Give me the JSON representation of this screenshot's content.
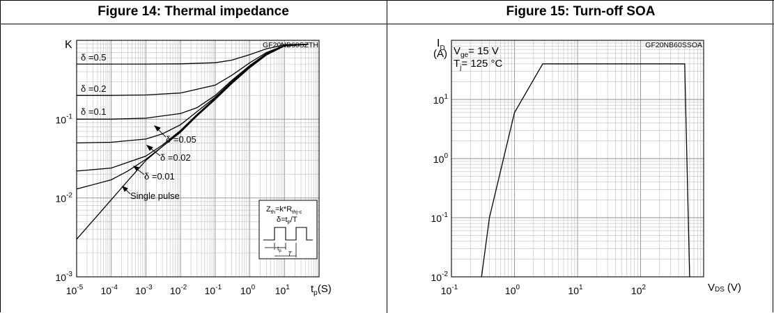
{
  "figure14": {
    "title": "Figure 14: Thermal impedance",
    "code": "GF20NB60SZTH",
    "y_axis_label": "K",
    "x_axis_label": "t",
    "x_axis_sub": "p",
    "x_axis_unit": "(S)",
    "curve_labels": [
      "δ =0.5",
      "δ =0.2",
      "δ =0.1",
      "δ =0.05",
      "δ =0.02",
      "δ =0.01",
      "Single pulse"
    ],
    "legend": {
      "formula_main": "Z",
      "formula_sub": "th",
      "formula_mid": "=k*R",
      "formula_sub2": "thj-c",
      "duty_main": "δ=t",
      "duty_sub": "p",
      "duty_end": "/T",
      "pulse_tp": "t",
      "pulse_tp_sub": "p",
      "pulse_T": "T"
    }
  },
  "figure15": {
    "title": "Figure 15: Turn-off SOA",
    "code": "GF20NB60SSOA",
    "y_axis_label": "I",
    "y_axis_sub": "D",
    "y_axis_unit": "(A)",
    "x_axis_label": "V",
    "x_axis_sub": "DS",
    "x_axis_unit": "(V)",
    "cond_vge_main": "V",
    "cond_vge_sub": "ge",
    "cond_vge_val": "= 15 V",
    "cond_tj_main": "T",
    "cond_tj_sub": "j",
    "cond_tj_val": "= 125 °C"
  },
  "chart_data": [
    {
      "type": "line",
      "title": "Figure 14: Thermal impedance",
      "xlabel": "tp(S)",
      "ylabel": "K",
      "xscale": "log",
      "yscale": "log",
      "xlim": [
        1e-05,
        100
      ],
      "ylim": [
        0.001,
        1
      ],
      "x_ticks": [
        1e-05,
        0.0001,
        0.001,
        0.01,
        0.1,
        1,
        10
      ],
      "x_tick_labels": [
        [
          "10",
          "-5"
        ],
        [
          "10",
          "-4"
        ],
        [
          "10",
          "-3"
        ],
        [
          "10",
          "-2"
        ],
        [
          "10",
          "-1"
        ],
        [
          "10",
          "0"
        ],
        [
          "10",
          "1"
        ]
      ],
      "y_ticks": [
        0.001,
        0.01,
        0.1
      ],
      "y_tick_labels": [
        [
          "10",
          "-3"
        ],
        [
          "10",
          "-2"
        ],
        [
          "10",
          "-1"
        ]
      ],
      "grid": true,
      "series": [
        {
          "name": "δ =0.5",
          "x": [
            1e-05,
            0.001,
            0.01,
            0.1,
            0.3,
            1,
            3,
            10,
            50
          ],
          "y": [
            0.5,
            0.5,
            0.503,
            0.52,
            0.56,
            0.66,
            0.78,
            0.88,
            0.89
          ]
        },
        {
          "name": "δ =0.2",
          "x": [
            1e-05,
            0.0001,
            0.001,
            0.01,
            0.1,
            0.3,
            1,
            3,
            10,
            50
          ],
          "y": [
            0.2,
            0.2,
            0.203,
            0.215,
            0.27,
            0.36,
            0.52,
            0.7,
            0.86,
            0.89
          ]
        },
        {
          "name": "δ =0.1",
          "x": [
            1e-05,
            0.0001,
            0.001,
            0.01,
            0.03,
            0.1,
            0.3,
            1,
            3,
            10,
            50
          ],
          "y": [
            0.1,
            0.1,
            0.103,
            0.118,
            0.14,
            0.2,
            0.31,
            0.48,
            0.68,
            0.85,
            0.89
          ]
        },
        {
          "name": "δ =0.05",
          "x": [
            1e-05,
            0.0001,
            0.001,
            0.003,
            0.01,
            0.03,
            0.1,
            0.3,
            1,
            3,
            10,
            50
          ],
          "y": [
            0.05,
            0.051,
            0.056,
            0.065,
            0.085,
            0.125,
            0.19,
            0.3,
            0.47,
            0.67,
            0.85,
            0.89
          ]
        },
        {
          "name": "δ =0.02",
          "x": [
            1e-05,
            0.0001,
            0.001,
            0.003,
            0.01,
            0.03,
            0.1,
            0.3,
            1,
            3,
            10,
            50
          ],
          "y": [
            0.022,
            0.024,
            0.034,
            0.047,
            0.072,
            0.115,
            0.185,
            0.29,
            0.46,
            0.66,
            0.85,
            0.89
          ]
        },
        {
          "name": "δ =0.01",
          "x": [
            1e-05,
            0.0001,
            0.0003,
            0.001,
            0.003,
            0.01,
            0.03,
            0.1,
            0.3,
            1,
            3,
            10,
            50
          ],
          "y": [
            0.013,
            0.017,
            0.022,
            0.031,
            0.045,
            0.07,
            0.112,
            0.18,
            0.285,
            0.455,
            0.655,
            0.85,
            0.89
          ]
        },
        {
          "name": "Single pulse",
          "x": [
            1e-05,
            3e-05,
            0.0001,
            0.0003,
            0.001,
            0.003,
            0.01,
            0.03,
            0.1,
            0.3,
            1,
            3,
            10,
            50
          ],
          "y": [
            0.003,
            0.0052,
            0.0095,
            0.0165,
            0.03,
            0.045,
            0.068,
            0.11,
            0.178,
            0.282,
            0.45,
            0.65,
            0.85,
            0.89
          ]
        }
      ]
    },
    {
      "type": "line",
      "title": "Figure 15: Turn-off SOA",
      "xlabel": "VDS (V)",
      "ylabel": "ID (A)",
      "xscale": "log",
      "yscale": "log",
      "xlim": [
        0.1,
        1000
      ],
      "ylim": [
        0.01,
        100
      ],
      "x_ticks": [
        0.1,
        1,
        10,
        100
      ],
      "x_tick_labels": [
        [
          "10",
          "-1"
        ],
        [
          "10",
          "0"
        ],
        [
          "10",
          "1"
        ],
        [
          "10",
          "2"
        ]
      ],
      "y_ticks": [
        0.01,
        0.1,
        1,
        10
      ],
      "y_tick_labels": [
        [
          "10",
          "-2"
        ],
        [
          "10",
          "-1"
        ],
        [
          "10",
          "0"
        ],
        [
          "10",
          "1"
        ]
      ],
      "grid": true,
      "series": [
        {
          "x": [
            0.3,
            0.4,
            1.0,
            2.8,
            500,
            600
          ],
          "y": [
            0.01,
            0.1,
            6,
            40,
            40,
            0.01
          ]
        }
      ]
    }
  ]
}
